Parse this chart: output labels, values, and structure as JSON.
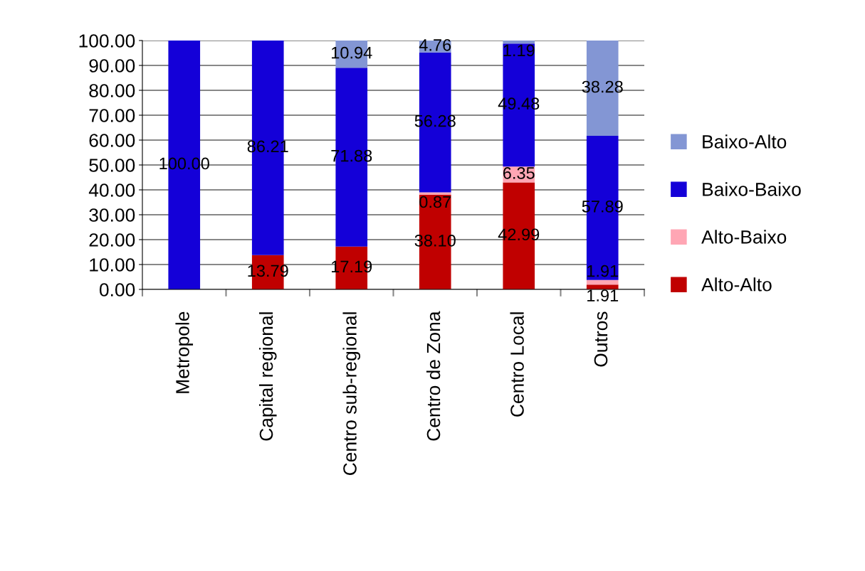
{
  "chart_data": {
    "type": "bar",
    "stacked": true,
    "categories": [
      "Metropole",
      "Capital regional",
      "Centro sub-regional",
      "Centro de Zona",
      "Centro Local",
      "Outros"
    ],
    "series": [
      {
        "name": "Alto-Alto",
        "color": "#c00000",
        "values": [
          null,
          13.79,
          17.19,
          38.1,
          42.99,
          1.91
        ],
        "value_labels": [
          null,
          "13.79",
          "17.19",
          "38.10",
          "42.99",
          "1.91"
        ]
      },
      {
        "name": "Alto-Baixo",
        "color": "#ffa6b4",
        "values": [
          null,
          null,
          null,
          0.87,
          6.35,
          1.91
        ],
        "value_labels": [
          null,
          null,
          null,
          "0.87",
          "6.35",
          "1.91"
        ]
      },
      {
        "name": "Baixo-Baixo",
        "color": "#1400d8",
        "values": [
          100.0,
          86.21,
          71.88,
          56.28,
          49.48,
          57.89
        ],
        "value_labels": [
          "100.00",
          "86.21",
          "71.88",
          "56.28",
          "49.48",
          "57.89"
        ]
      },
      {
        "name": "Baixo-Alto",
        "color": "#8396d4",
        "values": [
          null,
          null,
          10.94,
          4.76,
          1.19,
          38.28
        ],
        "value_labels": [
          null,
          null,
          "10.94",
          "4.76",
          "1.19",
          "38.28"
        ]
      }
    ],
    "ylim": [
      0,
      100
    ],
    "yticks": [
      {
        "value": 0,
        "label": "0.00"
      },
      {
        "value": 10,
        "label": "10.00"
      },
      {
        "value": 20,
        "label": "20.00"
      },
      {
        "value": 30,
        "label": "30.00"
      },
      {
        "value": 40,
        "label": "40.00"
      },
      {
        "value": 50,
        "label": "50.00"
      },
      {
        "value": 60,
        "label": "60.00"
      },
      {
        "value": 70,
        "label": "70.00"
      },
      {
        "value": 80,
        "label": "80.00"
      },
      {
        "value": 90,
        "label": "90.00"
      },
      {
        "value": 100,
        "label": "100.00"
      }
    ],
    "grid": "y",
    "legend": "right"
  }
}
